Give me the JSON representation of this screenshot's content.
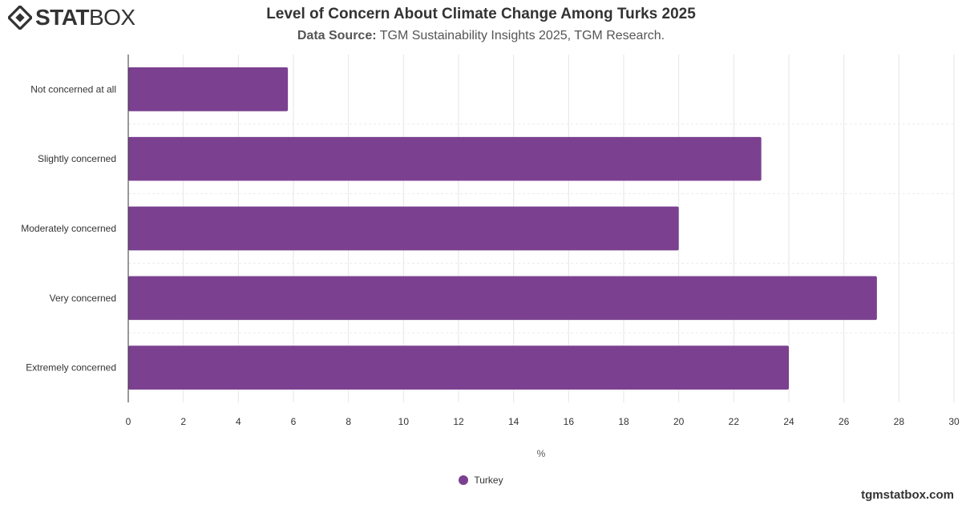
{
  "brand": {
    "logo_bold": "STAT",
    "logo_light": "BOX"
  },
  "header": {
    "title": "Level of Concern About Climate Change Among Turks 2025",
    "source_label": "Data Source:",
    "source_text": "TGM Sustainability Insights 2025, TGM Research."
  },
  "watermark": "tgmstatbox.com",
  "chart_data": {
    "type": "bar",
    "orientation": "horizontal",
    "categories": [
      "Not concerned at all",
      "Slightly concerned",
      "Moderately concerned",
      "Very concerned",
      "Extremely concerned"
    ],
    "series": [
      {
        "name": "Turkey",
        "values": [
          5.8,
          23.0,
          20.0,
          27.2,
          24.0
        ],
        "color": "#7b4190"
      }
    ],
    "xlabel": "%",
    "xlim": [
      0,
      30
    ],
    "xticks": [
      0,
      2,
      4,
      6,
      8,
      10,
      12,
      14,
      16,
      18,
      20,
      22,
      24,
      26,
      28,
      30
    ],
    "grid": true,
    "legend": "bottom-center"
  }
}
